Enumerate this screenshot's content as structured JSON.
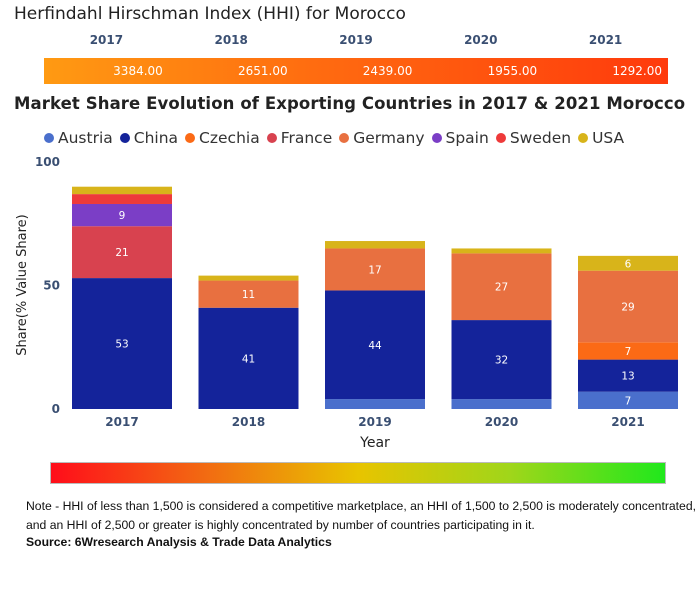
{
  "hhi": {
    "title": "Herfindahl Hirschman Index (HHI) for Morocco",
    "years": [
      "2017",
      "2018",
      "2019",
      "2020",
      "2021"
    ],
    "values": [
      "3384.00",
      "2651.00",
      "2439.00",
      "1955.00",
      "1292.00"
    ]
  },
  "chart_data": {
    "type": "bar",
    "stacked": true,
    "title": "Market Share Evolution of Exporting Countries in 2017 & 2021 Morocco",
    "xlabel": "Year",
    "ylabel": "Share(% Value Share)",
    "ylim": [
      0,
      100
    ],
    "yticks": [
      "0",
      "50",
      "100"
    ],
    "categories": [
      "2017",
      "2018",
      "2019",
      "2020",
      "2021"
    ],
    "series": [
      {
        "name": "Austria",
        "color": "#4a6fcc",
        "values": [
          0,
          0,
          4,
          4,
          7
        ],
        "labels": [
          "",
          "",
          "",
          "",
          "7"
        ]
      },
      {
        "name": "China",
        "color": "#14239a",
        "values": [
          53,
          41,
          44,
          32,
          13
        ],
        "labels": [
          "53",
          "41",
          "44",
          "32",
          "13"
        ]
      },
      {
        "name": "Czechia",
        "color": "#fb6a16",
        "values": [
          0,
          0,
          0,
          0,
          7
        ],
        "labels": [
          "",
          "",
          "",
          "",
          "7"
        ]
      },
      {
        "name": "France",
        "color": "#d8424f",
        "values": [
          21,
          0,
          0,
          0,
          0
        ],
        "labels": [
          "21",
          "",
          "",
          "",
          ""
        ]
      },
      {
        "name": "Germany",
        "color": "#e87040",
        "values": [
          0,
          11,
          17,
          27,
          29
        ],
        "labels": [
          "",
          "11",
          "17",
          "27",
          "29"
        ]
      },
      {
        "name": "Spain",
        "color": "#7b3ec6",
        "values": [
          9,
          0,
          0,
          0,
          0
        ],
        "labels": [
          "9",
          "",
          "",
          "",
          ""
        ]
      },
      {
        "name": "Sweden",
        "color": "#ee3a3a",
        "values": [
          4,
          0,
          0,
          0,
          0
        ],
        "labels": [
          "",
          "",
          "",
          "",
          ""
        ]
      },
      {
        "name": "USA",
        "color": "#d8b41a",
        "values": [
          3,
          2,
          3,
          2,
          6
        ],
        "labels": [
          "",
          "",
          "",
          "",
          "6"
        ]
      }
    ]
  },
  "gradient_scale": {
    "from": "#ff0d1a",
    "to": "#20e81c"
  },
  "footer": {
    "note": "Note - HHI of less than 1,500 is considered a competitive marketplace, an HHI of 1,500 to 2,500 is moderately concentrated, and an HHI of 2,500 or greater is highly concentrated by number of countries participating in it.",
    "source": "Source: 6Wresearch Analysis & Trade Data Analytics"
  }
}
